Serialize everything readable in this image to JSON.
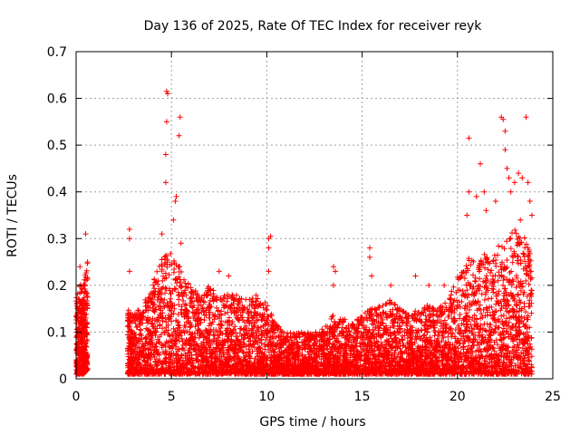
{
  "chart_data": {
    "type": "scatter",
    "title": "Day 136 of 2025, Rate Of TEC Index for receiver reyk",
    "xlabel": "GPS time / hours",
    "ylabel": "ROTI / TECUs",
    "xlim": [
      0,
      25
    ],
    "ylim": [
      0,
      0.7
    ],
    "xticks": [
      "0",
      "5",
      "10",
      "15",
      "20",
      "25"
    ],
    "yticks": [
      "0",
      "0.1",
      "0.2",
      "0.3",
      "0.4",
      "0.5",
      "0.6",
      "0.7"
    ],
    "grid": true,
    "marker": "plus",
    "color": "#ff0000",
    "series": [
      {
        "envelope": [
          [
            0.0,
            0.01,
            0.18
          ],
          [
            0.2,
            0.01,
            0.2
          ],
          [
            0.4,
            0.01,
            0.21
          ],
          [
            0.6,
            0.02,
            0.26
          ],
          [
            2.7,
            0.01,
            0.15
          ],
          [
            3.0,
            0.01,
            0.14
          ],
          [
            3.5,
            0.01,
            0.16
          ],
          [
            4.0,
            0.01,
            0.2
          ],
          [
            4.5,
            0.01,
            0.27
          ],
          [
            5.0,
            0.01,
            0.27
          ],
          [
            5.5,
            0.01,
            0.24
          ],
          [
            6.0,
            0.01,
            0.2
          ],
          [
            6.5,
            0.01,
            0.18
          ],
          [
            7.0,
            0.01,
            0.2
          ],
          [
            7.5,
            0.01,
            0.19
          ],
          [
            8.0,
            0.01,
            0.18
          ],
          [
            8.5,
            0.01,
            0.18
          ],
          [
            9.0,
            0.01,
            0.17
          ],
          [
            9.5,
            0.01,
            0.18
          ],
          [
            10.0,
            0.01,
            0.16
          ],
          [
            10.5,
            0.01,
            0.12
          ],
          [
            11.0,
            0.01,
            0.1
          ],
          [
            11.5,
            0.01,
            0.1
          ],
          [
            12.0,
            0.01,
            0.1
          ],
          [
            12.5,
            0.01,
            0.1
          ],
          [
            13.0,
            0.01,
            0.11
          ],
          [
            13.5,
            0.01,
            0.14
          ],
          [
            14.0,
            0.01,
            0.13
          ],
          [
            14.5,
            0.01,
            0.12
          ],
          [
            15.0,
            0.01,
            0.14
          ],
          [
            15.5,
            0.01,
            0.15
          ],
          [
            16.0,
            0.01,
            0.16
          ],
          [
            16.5,
            0.01,
            0.17
          ],
          [
            17.0,
            0.01,
            0.15
          ],
          [
            17.5,
            0.01,
            0.14
          ],
          [
            18.0,
            0.01,
            0.15
          ],
          [
            18.5,
            0.01,
            0.16
          ],
          [
            19.0,
            0.01,
            0.15
          ],
          [
            19.5,
            0.01,
            0.17
          ],
          [
            20.0,
            0.01,
            0.22
          ],
          [
            20.5,
            0.01,
            0.26
          ],
          [
            21.0,
            0.01,
            0.25
          ],
          [
            21.5,
            0.01,
            0.27
          ],
          [
            22.0,
            0.01,
            0.28
          ],
          [
            22.5,
            0.01,
            0.3
          ],
          [
            23.0,
            0.01,
            0.32
          ],
          [
            23.5,
            0.01,
            0.31
          ],
          [
            23.9,
            0.01,
            0.26
          ]
        ],
        "outliers": [
          [
            0.2,
            0.24
          ],
          [
            0.5,
            0.31
          ],
          [
            0.6,
            0.25
          ],
          [
            2.8,
            0.32
          ],
          [
            2.8,
            0.3
          ],
          [
            2.8,
            0.23
          ],
          [
            4.5,
            0.31
          ],
          [
            4.7,
            0.42
          ],
          [
            4.7,
            0.48
          ],
          [
            4.75,
            0.55
          ],
          [
            4.75,
            0.615
          ],
          [
            4.8,
            0.61
          ],
          [
            5.1,
            0.34
          ],
          [
            5.2,
            0.38
          ],
          [
            5.25,
            0.39
          ],
          [
            5.4,
            0.52
          ],
          [
            5.45,
            0.56
          ],
          [
            5.5,
            0.29
          ],
          [
            7.5,
            0.23
          ],
          [
            8.0,
            0.22
          ],
          [
            10.1,
            0.3
          ],
          [
            10.2,
            0.305
          ],
          [
            10.1,
            0.28
          ],
          [
            10.1,
            0.23
          ],
          [
            13.5,
            0.24
          ],
          [
            13.6,
            0.23
          ],
          [
            13.5,
            0.2
          ],
          [
            15.4,
            0.28
          ],
          [
            15.4,
            0.26
          ],
          [
            15.5,
            0.22
          ],
          [
            16.5,
            0.2
          ],
          [
            17.8,
            0.22
          ],
          [
            18.5,
            0.2
          ],
          [
            19.3,
            0.2
          ],
          [
            20.6,
            0.515
          ],
          [
            20.6,
            0.4
          ],
          [
            20.5,
            0.35
          ],
          [
            21.2,
            0.46
          ],
          [
            21.0,
            0.39
          ],
          [
            21.4,
            0.4
          ],
          [
            21.5,
            0.36
          ],
          [
            22.0,
            0.38
          ],
          [
            22.3,
            0.56
          ],
          [
            22.4,
            0.555
          ],
          [
            22.5,
            0.53
          ],
          [
            22.5,
            0.49
          ],
          [
            22.6,
            0.45
          ],
          [
            22.7,
            0.43
          ],
          [
            23.0,
            0.42
          ],
          [
            23.2,
            0.44
          ],
          [
            23.4,
            0.43
          ],
          [
            23.6,
            0.56
          ],
          [
            23.7,
            0.42
          ],
          [
            23.8,
            0.38
          ],
          [
            23.9,
            0.35
          ],
          [
            23.3,
            0.34
          ],
          [
            22.8,
            0.4
          ]
        ]
      }
    ]
  }
}
